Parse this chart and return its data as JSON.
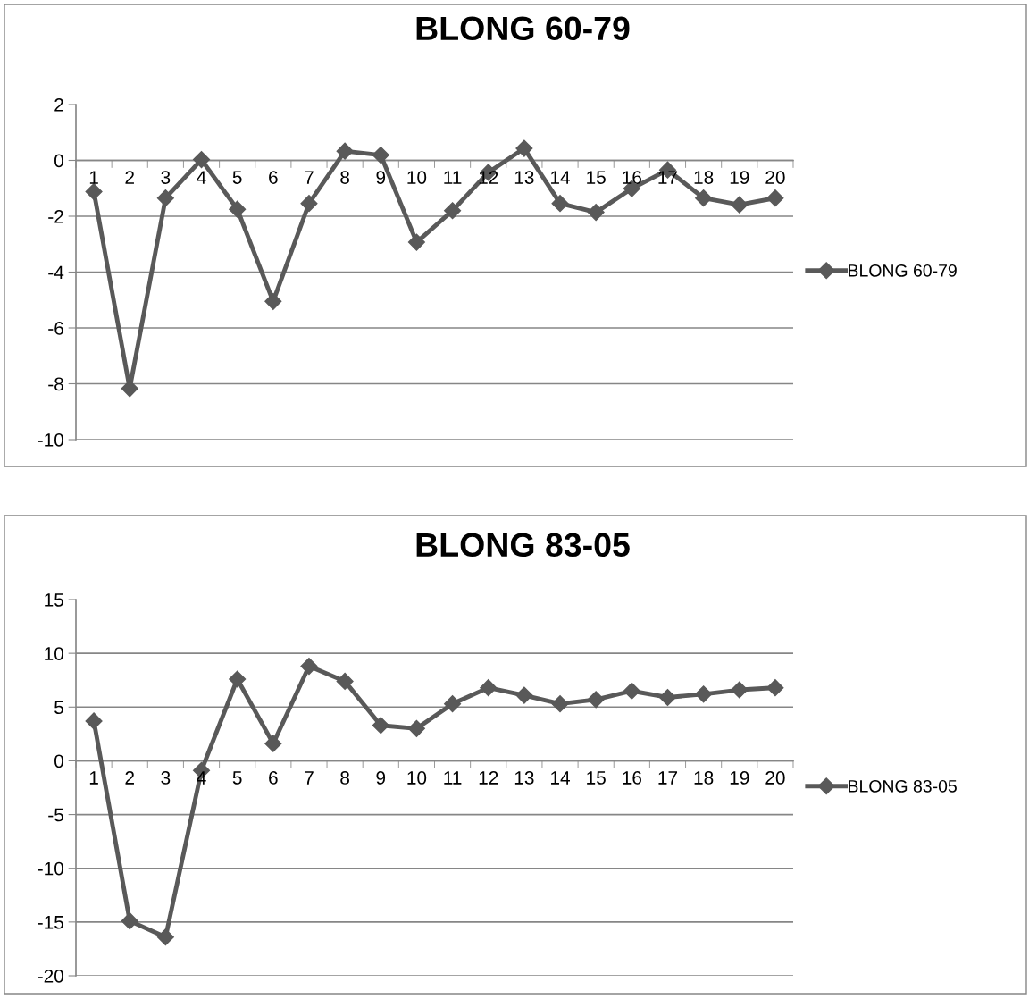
{
  "chart_data": [
    {
      "type": "line",
      "title": "BLONG 60-79",
      "categories": [
        "1",
        "2",
        "3",
        "4",
        "5",
        "6",
        "7",
        "8",
        "9",
        "10",
        "11",
        "12",
        "13",
        "14",
        "15",
        "16",
        "17",
        "18",
        "19",
        "20"
      ],
      "series": [
        {
          "name": "BLONG 60-79",
          "color": "#595959",
          "values": [
            -1.12,
            -8.17,
            -1.35,
            0.03,
            -1.75,
            -5.05,
            -1.54,
            0.33,
            0.19,
            -2.93,
            -1.8,
            -0.43,
            0.43,
            -1.54,
            -1.86,
            -1.01,
            -0.34,
            -1.35,
            -1.59,
            -1.35
          ]
        }
      ],
      "ylim": [
        -10,
        2
      ],
      "yticks": [
        -10,
        -8,
        -6,
        -4,
        -2,
        0,
        2
      ],
      "grid": "y",
      "legend": "right",
      "marker": "diamond",
      "line_style": "solid"
    },
    {
      "type": "line",
      "title": "BLONG 83-05",
      "categories": [
        "1",
        "2",
        "3",
        "4",
        "5",
        "6",
        "7",
        "8",
        "9",
        "10",
        "11",
        "12",
        "13",
        "14",
        "15",
        "16",
        "17",
        "18",
        "19",
        "20"
      ],
      "series": [
        {
          "name": "BLONG 83-05",
          "color": "#595959",
          "values": [
            3.7,
            -14.9,
            -16.4,
            -0.9,
            7.6,
            1.6,
            8.8,
            7.4,
            3.3,
            3.0,
            5.3,
            6.8,
            6.1,
            5.3,
            5.7,
            6.5,
            5.9,
            6.2,
            6.6,
            6.8
          ]
        }
      ],
      "ylim": [
        -20,
        15
      ],
      "yticks": [
        -20,
        -15,
        -10,
        -5,
        0,
        5,
        10,
        15
      ],
      "grid": "y",
      "legend": "right",
      "marker": "diamond",
      "line_style": "solid"
    }
  ]
}
